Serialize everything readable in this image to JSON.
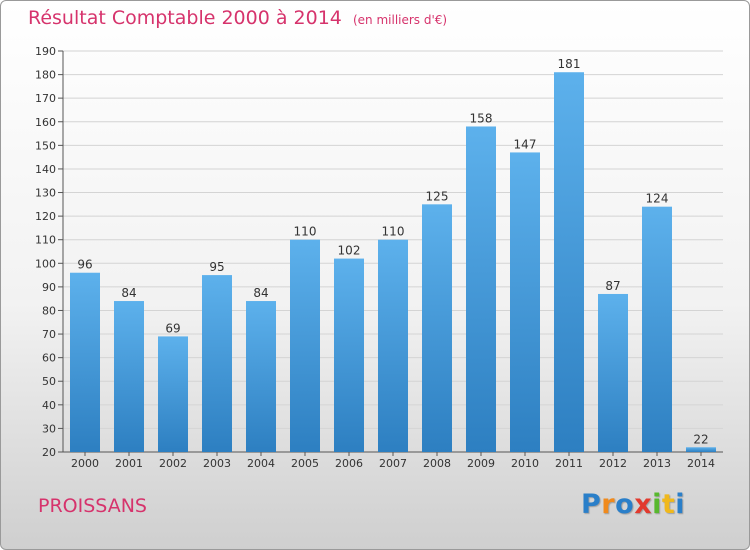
{
  "chart_data": {
    "type": "bar",
    "title": "Résultat Comptable 2000 à 2014",
    "subtitle": "(en milliers d'€)",
    "categories": [
      "2000",
      "2001",
      "2002",
      "2003",
      "2004",
      "2005",
      "2006",
      "2007",
      "2008",
      "2009",
      "2010",
      "2011",
      "2012",
      "2013",
      "2014"
    ],
    "values": [
      96,
      84,
      69,
      95,
      84,
      110,
      102,
      110,
      125,
      158,
      147,
      181,
      87,
      124,
      22
    ],
    "ylim": [
      20,
      190
    ],
    "yticks": [
      20,
      30,
      40,
      50,
      60,
      70,
      80,
      90,
      100,
      110,
      120,
      130,
      140,
      150,
      160,
      170,
      180,
      190
    ],
    "grid": true,
    "bar_color": "#4a9fe0"
  },
  "footer": {
    "place": "PROISSANS",
    "logo_letters": [
      "P",
      "r",
      "o",
      "x",
      "i",
      "t",
      "i"
    ],
    "logo_colors": [
      "#2a7fc9",
      "#f08a1c",
      "#2a7fc9",
      "#e23a2e",
      "#58b82e",
      "#f0b81c",
      "#2a7fc9"
    ]
  }
}
